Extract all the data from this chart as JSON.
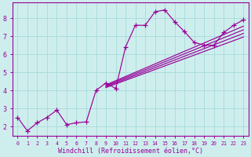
{
  "background_color": "#ceeeed",
  "line_color": "#990099",
  "grid_color": "#aadddd",
  "xlabel": "Windchill (Refroidissement éolien,°C)",
  "xlim": [
    -0.5,
    23.5
  ],
  "ylim": [
    1.5,
    8.85
  ],
  "xtick_labels": [
    "0",
    "1",
    "2",
    "3",
    "4",
    "5",
    "6",
    "7",
    "8",
    "9",
    "10",
    "11",
    "12",
    "13",
    "14",
    "15",
    "16",
    "17",
    "18",
    "19",
    "20",
    "21",
    "22",
    "23"
  ],
  "ytick_values": [
    2,
    3,
    4,
    5,
    6,
    7,
    8
  ],
  "main_line": [
    [
      0,
      2.5
    ],
    [
      1,
      1.75
    ],
    [
      2,
      2.2
    ],
    [
      3,
      2.5
    ],
    [
      4,
      2.9
    ],
    [
      5,
      2.1
    ],
    [
      6,
      2.2
    ],
    [
      7,
      2.25
    ],
    [
      8,
      4.0
    ],
    [
      9,
      4.4
    ],
    [
      10,
      4.1
    ],
    [
      11,
      6.4
    ],
    [
      12,
      7.6
    ],
    [
      13,
      7.6
    ],
    [
      14,
      8.35
    ],
    [
      15,
      8.45
    ],
    [
      16,
      7.8
    ],
    [
      17,
      7.25
    ],
    [
      18,
      6.65
    ],
    [
      19,
      6.5
    ],
    [
      20,
      6.5
    ],
    [
      21,
      7.2
    ],
    [
      22,
      7.6
    ],
    [
      23,
      7.9
    ]
  ],
  "diag_lines": [
    [
      [
        9,
        4.3
      ],
      [
        23,
        7.55
      ]
    ],
    [
      [
        9,
        4.25
      ],
      [
        23,
        7.35
      ]
    ],
    [
      [
        9,
        4.2
      ],
      [
        23,
        7.15
      ]
    ],
    [
      [
        9,
        4.15
      ],
      [
        23,
        6.95
      ]
    ]
  ]
}
